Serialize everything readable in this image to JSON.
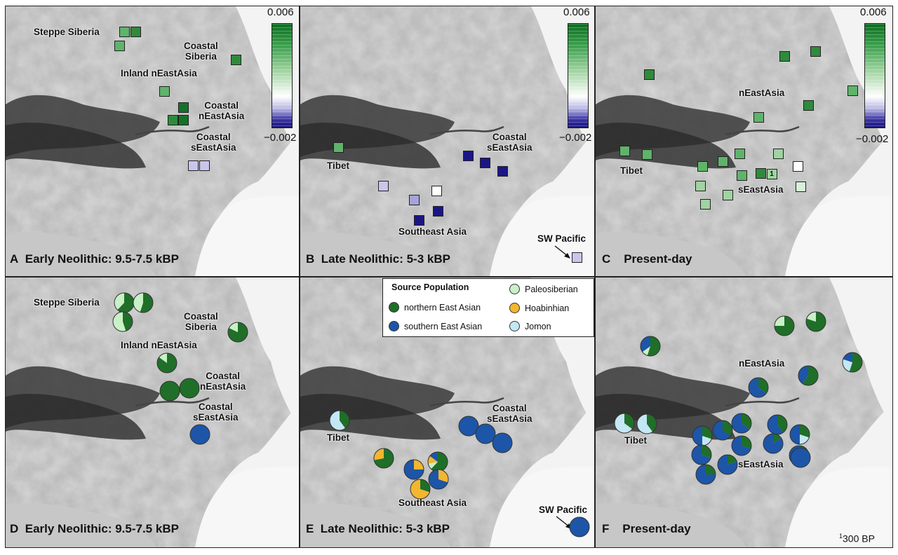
{
  "colors": {
    "nEA": "#1f6f28",
    "sEA": "#1d55a8",
    "paleo": "#c9f0c6",
    "hoab": "#f3b62f",
    "jomon": "#c4e7f5",
    "f_light": "#d9efd9",
    "f_pale": "#9fd3a0",
    "f_mid": "#5fb36a",
    "f_dark": "#2f8a3c",
    "f_darker": "#16702a",
    "f_white": "#ffffff",
    "f_lav": "#c8c6ec",
    "f_lav2": "#a6a3d8",
    "f_navy": "#1b1685",
    "f_navy2": "#13108a"
  },
  "colorbar": {
    "max": "0.006",
    "min": "−0.002"
  },
  "panels": [
    {
      "letter": "A",
      "title": "Early Neolithic: 9.5-7.5 kBP",
      "labels": [
        {
          "text": "Steppe Siberia"
        },
        {
          "text": "Coastal\nSiberia"
        },
        {
          "text": "Inland nEastAsia"
        },
        {
          "text": "Coastal\nnEastAsia"
        },
        {
          "text": "Coastal\nsEastAsia"
        }
      ],
      "squares": [
        "f_mid",
        "f_dark",
        "f_mid",
        "f_dark",
        "f_mid",
        "f_darker",
        "f_dark",
        "f_darker",
        "f_lav",
        "f_lav"
      ]
    },
    {
      "letter": "B",
      "title": "Late Neolithic: 5-3 kBP",
      "labels": [
        {
          "text": "Tibet"
        },
        {
          "text": "Coastal\nsEastAsia"
        },
        {
          "text": "Southeast Asia"
        },
        {
          "text": "SW Pacific"
        }
      ],
      "squares": [
        "f_mid",
        "f_navy",
        "f_navy",
        "f_navy",
        "f_lav",
        "f_white",
        "f_lav2",
        "f_navy",
        "f_navy",
        "f_lav"
      ]
    },
    {
      "letter": "C",
      "title": "Present-day",
      "labels": [
        {
          "text": "nEastAsia"
        },
        {
          "text": "Tibet"
        },
        {
          "text": "sEastAsia"
        }
      ],
      "squares": [
        "f_dark",
        "f_dark",
        "f_dark",
        "f_mid",
        "f_dark",
        "f_mid",
        "f_mid",
        "f_mid",
        "f_mid",
        "f_mid",
        "f_mid",
        "f_pale",
        "f_dark",
        "f_mid",
        "f_pale",
        "f_pale",
        "f_pale",
        "f_pale",
        "f_white",
        "f_light"
      ],
      "square_number": "1"
    },
    {
      "letter": "D",
      "title": "Early Neolithic: 9.5-7.5 kBP",
      "labels": [
        {
          "text": "Steppe Siberia"
        },
        {
          "text": "Coastal\nSiberia"
        },
        {
          "text": "Inland nEastAsia"
        },
        {
          "text": "Coastal\nnEastAsia"
        },
        {
          "text": "Coastal\nsEastAsia"
        }
      ],
      "pies": [
        {
          "nEA": 0.62,
          "paleo": 0.38
        },
        {
          "nEA": 0.55,
          "paleo": 0.45
        },
        {
          "nEA": 0.45,
          "paleo": 0.55
        },
        {
          "nEA": 0.82,
          "paleo": 0.18
        },
        {
          "nEA": 0.85,
          "paleo": 0.15
        },
        {
          "nEA": 1.0
        },
        {
          "nEA": 1.0
        },
        {
          "sEA": 1.0
        }
      ]
    },
    {
      "letter": "E",
      "title": "Late Neolithic: 5-3 kBP",
      "labels": [
        {
          "text": "Tibet"
        },
        {
          "text": "Coastal\nsEastAsia"
        },
        {
          "text": "Southeast Asia"
        },
        {
          "text": "SW Pacific"
        }
      ],
      "pies": [
        {
          "nEA": 0.4,
          "jomon": 0.6
        },
        {
          "sEA": 1.0
        },
        {
          "sEA": 1.0
        },
        {
          "sEA": 1.0
        },
        {
          "nEA": 0.72,
          "hoab": 0.28
        },
        {
          "sEA": 0.75,
          "hoab": 0.25
        },
        {
          "nEA": 0.62,
          "hoab": 0.13,
          "paleo": 0.1,
          "sEA": 0.15
        },
        {
          "sEA": 0.7,
          "hoab": 0.3
        },
        {
          "nEA": 0.3,
          "hoab": 0.7
        },
        {
          "sEA": 1.0
        }
      ]
    },
    {
      "letter": "F",
      "title": "Present-day",
      "labels": [
        {
          "text": "nEastAsia"
        },
        {
          "text": "Tibet"
        },
        {
          "text": "sEastAsia"
        }
      ],
      "pies": [
        {
          "nEA": 0.55,
          "paleo": 0.1,
          "sEA": 0.35
        },
        {
          "nEA": 0.75,
          "paleo": 0.25
        },
        {
          "nEA": 0.8,
          "paleo": 0.2
        },
        {
          "nEA": 0.55,
          "jomon": 0.25,
          "sEA": 0.2
        },
        {
          "nEA": 0.6,
          "sEA": 0.4
        },
        {
          "nEA": 0.35,
          "sEA": 0.65
        },
        {
          "nEA": 0.35,
          "jomon": 0.65
        },
        {
          "nEA": 0.4,
          "jomon": 0.6
        },
        {
          "nEA": 0.3,
          "sEA": 0.5,
          "jomon": 0.2
        },
        {
          "nEA": 0.35,
          "sEA": 0.65
        },
        {
          "nEA": 0.35,
          "sEA": 0.65
        },
        {
          "nEA": 0.4,
          "sEA": 0.6
        },
        {
          "nEA": 0.15,
          "sEA": 0.85
        },
        {
          "nEA": 0.3,
          "sEA": 0.7
        },
        {
          "nEA": 0.3,
          "sEA": 0.7
        },
        {
          "nEA": 0.2,
          "sEA": 0.8
        },
        {
          "nEA": 0.25,
          "sEA": 0.75
        },
        {
          "nEA": 0.3,
          "sEA": 0.5,
          "jomon": 0.2
        },
        {
          "nEA": 0.25,
          "sEA": 0.75
        },
        {
          "sEA": 1.0
        }
      ]
    }
  ],
  "legend": {
    "title": "Source Population",
    "items": [
      {
        "label": "northern East Asian",
        "color": "nEA"
      },
      {
        "label": "southern East Asian",
        "color": "sEA"
      },
      {
        "label": "Paleosiberian",
        "color": "paleo"
      },
      {
        "label": "Hoabinhian",
        "color": "hoab"
      },
      {
        "label": "Jomon",
        "color": "jomon"
      }
    ]
  },
  "footnote": {
    "sup": "1",
    "text": "300 BP"
  }
}
